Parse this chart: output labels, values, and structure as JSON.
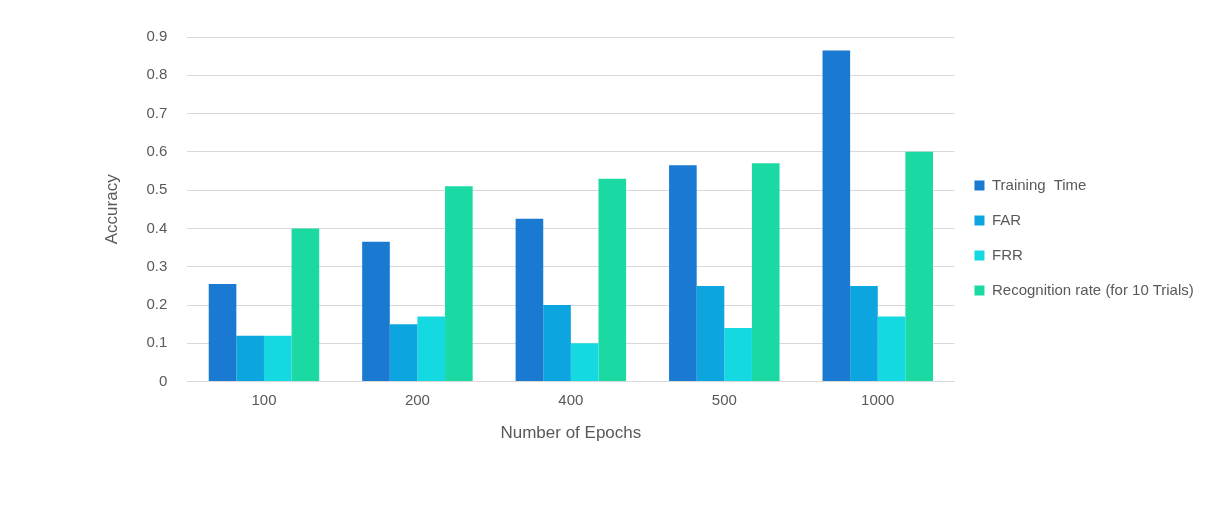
{
  "chart_data": {
    "type": "bar",
    "xlabel": "Number of Epochs",
    "ylabel": "Accuracy",
    "categories": [
      "100",
      "200",
      "400",
      "500",
      "1000"
    ],
    "series": [
      {
        "name": "Training  Time",
        "color": "#1a79d0",
        "values": [
          0.255,
          0.365,
          0.425,
          0.565,
          0.865
        ]
      },
      {
        "name": "FAR",
        "color": "#0ca5df",
        "values": [
          0.12,
          0.15,
          0.2,
          0.25,
          0.25
        ]
      },
      {
        "name": "FRR",
        "color": "#14d9e1",
        "values": [
          0.12,
          0.17,
          0.1,
          0.14,
          0.17
        ]
      },
      {
        "name": "Recognition rate (for 10 Trials)",
        "color": "#1bd9a2",
        "values": [
          0.4,
          0.51,
          0.53,
          0.57,
          0.6
        ]
      }
    ],
    "ylim": [
      0,
      0.9
    ],
    "yticks": [
      0,
      0.1,
      0.2,
      0.3,
      0.4,
      0.5,
      0.6,
      0.7,
      0.8,
      0.9
    ],
    "grid": "y",
    "legend": "right"
  }
}
